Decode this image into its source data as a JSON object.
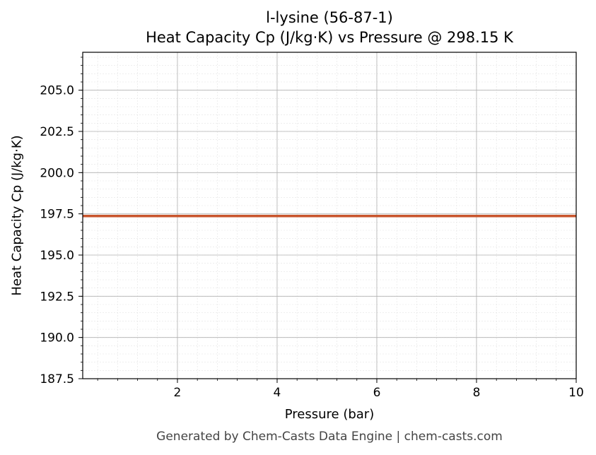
{
  "chart_data": {
    "type": "line",
    "title": "l-lysine (56-87-1)",
    "subtitle": "Heat Capacity Cp (J/kg·K) vs Pressure @ 298.15 K",
    "xlabel": "Pressure (bar)",
    "ylabel": "Heat Capacity Cp (J/kg·K)",
    "xlim": [
      0.1,
      10
    ],
    "ylim": [
      187.5,
      207.3
    ],
    "x_ticks": [
      2,
      4,
      6,
      8,
      10
    ],
    "x_tick_labels": [
      "2",
      "4",
      "6",
      "8",
      "10"
    ],
    "y_ticks": [
      187.5,
      190.0,
      192.5,
      195.0,
      197.5,
      200.0,
      202.5,
      205.0
    ],
    "y_tick_labels": [
      "187.5",
      "190.0",
      "192.5",
      "195.0",
      "197.5",
      "200.0",
      "202.5",
      "205.0"
    ],
    "grid": true,
    "series": [
      {
        "color": "#c8552d",
        "x": [
          0.1,
          1,
          2,
          3,
          4,
          5,
          6,
          7,
          8,
          9,
          10
        ],
        "values": [
          197.37,
          197.37,
          197.37,
          197.37,
          197.37,
          197.37,
          197.37,
          197.37,
          197.37,
          197.37,
          197.37
        ]
      }
    ]
  },
  "footer": "Generated by Chem-Casts Data Engine | chem-casts.com"
}
